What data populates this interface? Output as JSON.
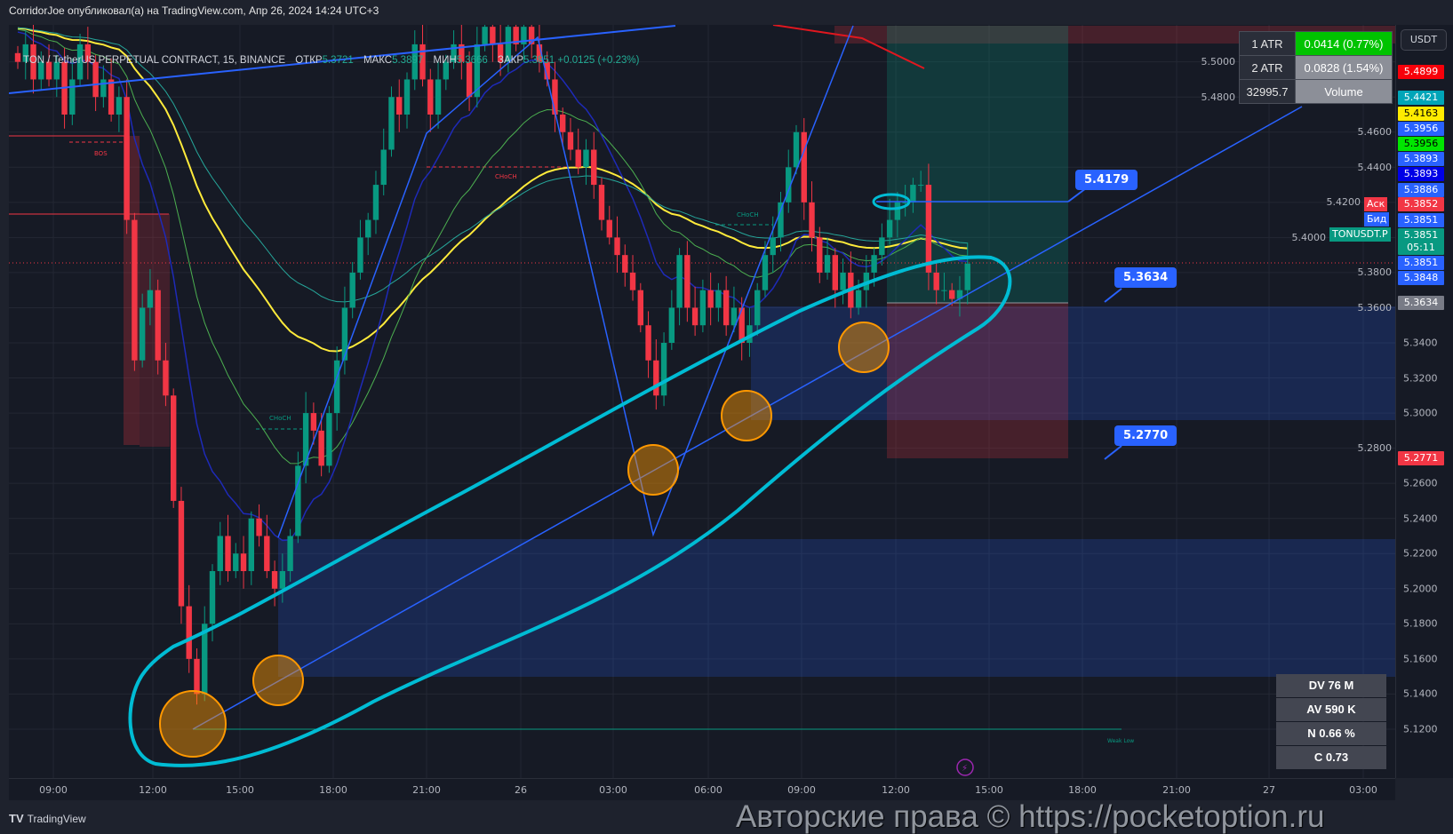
{
  "header": {
    "publisher_line": "CorridorJoe опубликовал(а) на TradingView.com, Апр 26, 2024 14:24 UTC+3"
  },
  "legend": {
    "symbol": "TON / TetherUS PERPETUAL CONTRACT, 15, BINANCE",
    "open_label": "ОТКР",
    "open": "5.3721",
    "high_label": "МАКС",
    "high": "5.3897",
    "low_label": "МИН",
    "low": "5.3666",
    "close_label": "ЗАКР",
    "close": "5.3851",
    "change": "+0.0125 (+0.23%)"
  },
  "atr_table": {
    "rows": [
      {
        "key": "1 ATR",
        "value": "0.0414 (0.77%)"
      },
      {
        "key": "2 ATR",
        "value": "0.0828 (1.54%)"
      },
      {
        "key": "32995.7",
        "value": "Volume"
      }
    ]
  },
  "stats_table": [
    "DV 76 M",
    "AV 590 K",
    "N 0.66 %",
    "C  0.73"
  ],
  "currency_button": "USDT",
  "price_tags": [
    {
      "value": "5.4899",
      "color": "#f7000a"
    },
    {
      "value": "5.4421",
      "color": "#00a5b8"
    },
    {
      "value": "5.4163",
      "color": "#ffeb00",
      "text_color": "#000000"
    },
    {
      "value": "5.3956",
      "color": "#2962ff"
    },
    {
      "value": "5.3956",
      "color": "#00e600",
      "text_color": "#000000"
    },
    {
      "value": "5.3893",
      "color": "#2962ff"
    },
    {
      "value": "5.3893",
      "color": "#0000e6"
    },
    {
      "value": "5.3886",
      "color": "#2962ff"
    },
    {
      "value": "5.3852",
      "color": "#f23645"
    },
    {
      "value": "5.3851",
      "color": "#2962ff"
    },
    {
      "value": "5.3851",
      "color": "#089981",
      "countdown": "05:11"
    },
    {
      "value": "5.3851",
      "color": "#2962ff"
    },
    {
      "value": "5.3848",
      "color": "#2962ff"
    },
    {
      "value": "5.3634",
      "color": "#787b86"
    },
    {
      "value": "5.2771",
      "color": "#f23645"
    }
  ],
  "side_labels": {
    "ask": "Аск",
    "bid": "Бид",
    "symbol": "TONUSDT.P"
  },
  "drawing_labels": {
    "target": "5.4179",
    "entry": "5.3634",
    "stop": "5.2770"
  },
  "annotations": {
    "bos": "BOS",
    "choch": "CHoCH",
    "weak_low": "Weak Low"
  },
  "footer": {
    "logo": "TradingView",
    "watermark": "Авторские права © https://pocketoption.ru"
  },
  "colors": {
    "up": "#089981",
    "down": "#f23645",
    "background": "#161a25",
    "drawing": "#2962ff",
    "channel": "#00bcd4",
    "circles": "#ff9800"
  },
  "chart_data": {
    "type": "candlestick",
    "timeframe": "15",
    "ylim": [
      5.11,
      5.52
    ],
    "y_ticks": [
      "5.5000",
      "5.4800",
      "5.4600",
      "5.4400",
      "5.4200",
      "5.4000",
      "5.3800",
      "5.3600",
      "5.3400",
      "5.3200",
      "5.3000",
      "5.2800",
      "5.2600",
      "5.2400",
      "5.2200",
      "5.2000",
      "5.1800",
      "5.1600",
      "5.1400",
      "5.1200"
    ],
    "x_ticks": [
      "09:00",
      "12:00",
      "15:00",
      "18:00",
      "21:00",
      "26",
      "03:00",
      "06:00",
      "09:00",
      "12:00",
      "15:00",
      "18:00",
      "21:00",
      "27",
      "03:00"
    ],
    "grid": true,
    "closes": [
      5.5,
      5.51,
      5.49,
      5.5,
      5.49,
      5.5,
      5.47,
      5.49,
      5.51,
      5.5,
      5.48,
      5.49,
      5.47,
      5.48,
      5.41,
      5.33,
      5.36,
      5.37,
      5.33,
      5.31,
      5.25,
      5.19,
      5.16,
      5.14,
      5.18,
      5.21,
      5.23,
      5.21,
      5.22,
      5.21,
      5.24,
      5.23,
      5.21,
      5.2,
      5.21,
      5.23,
      5.27,
      5.3,
      5.29,
      5.27,
      5.3,
      5.33,
      5.36,
      5.38,
      5.4,
      5.41,
      5.43,
      5.45,
      5.48,
      5.47,
      5.49,
      5.51,
      5.49,
      5.47,
      5.49,
      5.5,
      5.51,
      5.5,
      5.48,
      5.51,
      5.52,
      5.51,
      5.5,
      5.52,
      5.51,
      5.52,
      5.51,
      5.5,
      5.49,
      5.47,
      5.46,
      5.45,
      5.44,
      5.45,
      5.43,
      5.41,
      5.4,
      5.39,
      5.38,
      5.37,
      5.35,
      5.33,
      5.31,
      5.34,
      5.36,
      5.39,
      5.36,
      5.35,
      5.37,
      5.36,
      5.37,
      5.35,
      5.36,
      5.34,
      5.35,
      5.37,
      5.39,
      5.4,
      5.42,
      5.44,
      5.46,
      5.42,
      5.4,
      5.38,
      5.39,
      5.37,
      5.38,
      5.36,
      5.37,
      5.38,
      5.39,
      5.4,
      5.41,
      5.42,
      5.42,
      5.43,
      5.43,
      5.38,
      5.37,
      5.37,
      5.365,
      5.37,
      5.3851
    ]
  }
}
